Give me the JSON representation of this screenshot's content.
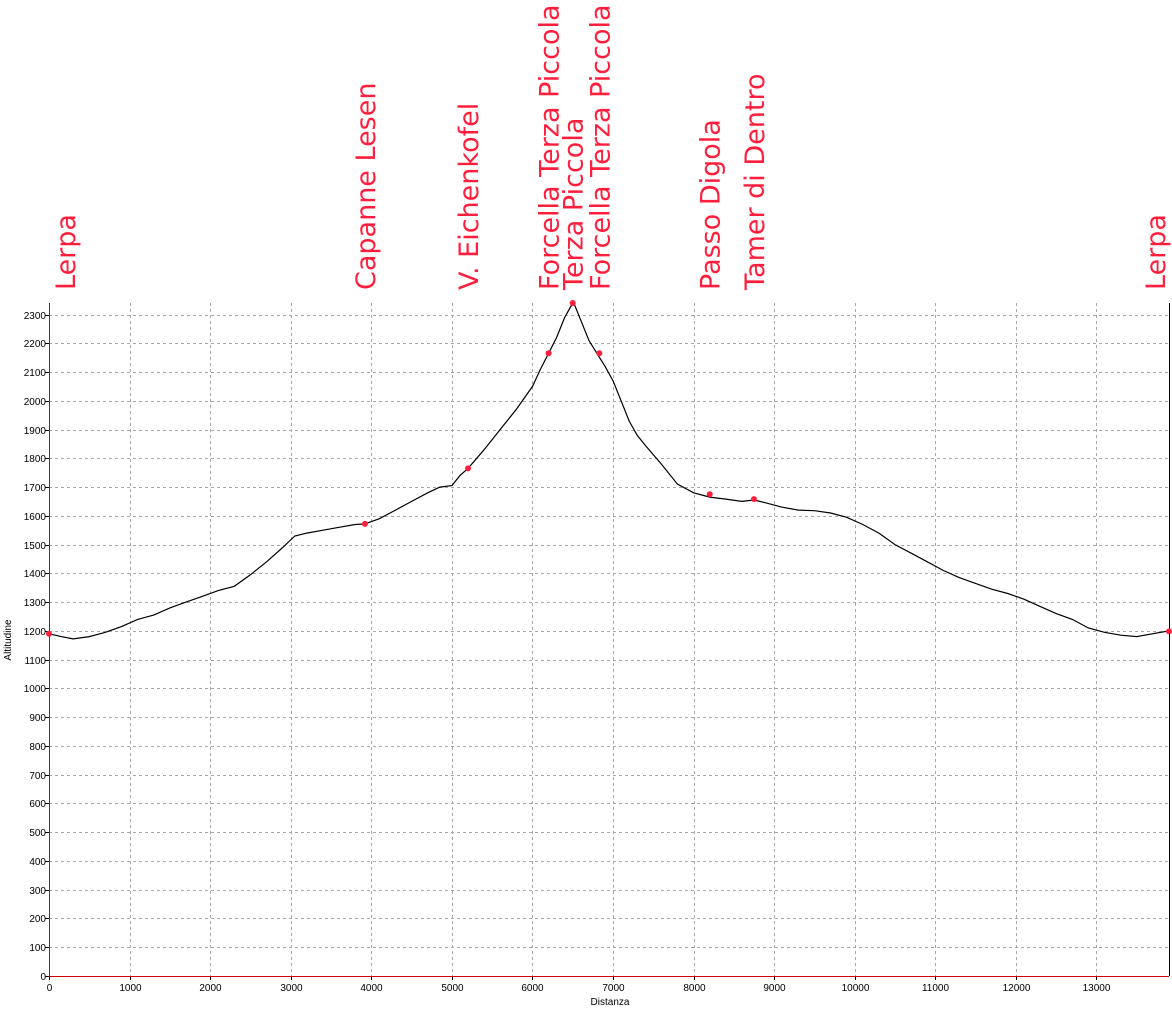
{
  "chart_data": {
    "type": "line",
    "title": "",
    "xlabel": "Distanza",
    "ylabel": "Altitudine",
    "xlim": [
      0,
      13900
    ],
    "ylim": [
      0,
      2340
    ],
    "x_ticks": [
      0,
      1000,
      2000,
      3000,
      4000,
      5000,
      6000,
      7000,
      8000,
      9000,
      10000,
      11000,
      12000,
      13000
    ],
    "y_ticks": [
      0,
      100,
      200,
      300,
      400,
      500,
      600,
      700,
      800,
      900,
      1000,
      1100,
      1200,
      1300,
      1400,
      1500,
      1600,
      1700,
      1800,
      1900,
      2000,
      2100,
      2200,
      2300
    ],
    "grid": true,
    "colors": {
      "profile": "#000000",
      "waypoint": "#ff1e3c",
      "axis": "#cc0000",
      "grid": "#a8a8a8"
    },
    "series": [
      {
        "x": [
          0,
          150,
          300,
          500,
          700,
          900,
          1100,
          1300,
          1500,
          1700,
          1900,
          2100,
          2300,
          2500,
          2700,
          2900,
          3050,
          3200,
          3400,
          3600,
          3800,
          3920,
          4100,
          4300,
          4500,
          4700,
          4850,
          5000,
          5100,
          5200,
          5400,
          5600,
          5800,
          6000,
          6100,
          6200,
          6300,
          6400,
          6480,
          6520,
          6600,
          6700,
          6800,
          6900,
          7000,
          7100,
          7200,
          7300,
          7400,
          7600,
          7800,
          8000,
          8200,
          8400,
          8600,
          8750,
          8900,
          9100,
          9300,
          9500,
          9700,
          9900,
          10100,
          10300,
          10500,
          10700,
          10900,
          11100,
          11300,
          11500,
          11700,
          11900,
          12100,
          12300,
          12500,
          12700,
          12900,
          13100,
          13300,
          13500,
          13700,
          13900
        ],
        "y": [
          1190,
          1180,
          1172,
          1180,
          1195,
          1215,
          1240,
          1255,
          1280,
          1300,
          1320,
          1340,
          1355,
          1395,
          1440,
          1490,
          1530,
          1540,
          1550,
          1560,
          1570,
          1572,
          1590,
          1620,
          1650,
          1680,
          1700,
          1705,
          1740,
          1765,
          1830,
          1900,
          1970,
          2050,
          2110,
          2165,
          2220,
          2290,
          2330,
          2335,
          2280,
          2210,
          2165,
          2120,
          2070,
          2000,
          1930,
          1880,
          1845,
          1780,
          1710,
          1680,
          1665,
          1658,
          1650,
          1655,
          1645,
          1630,
          1620,
          1618,
          1610,
          1595,
          1570,
          1540,
          1500,
          1470,
          1440,
          1410,
          1385,
          1365,
          1345,
          1330,
          1310,
          1285,
          1260,
          1240,
          1210,
          1195,
          1185,
          1180,
          1190,
          1200
        ]
      }
    ],
    "waypoints": [
      {
        "name": "Lerpa",
        "x": 0,
        "y": 1190
      },
      {
        "name": "Capanne Lesen",
        "x": 3920,
        "y": 1572
      },
      {
        "name": "V. Eichenkofel",
        "x": 5200,
        "y": 1765
      },
      {
        "name": "Forcella Terza Piccola",
        "x": 6200,
        "y": 2165
      },
      {
        "name": "Terza Piccola",
        "x": 6500,
        "y": 2340
      },
      {
        "name": "Forcella Terza Piccola",
        "x": 6830,
        "y": 2165
      },
      {
        "name": "Passo Digola",
        "x": 8200,
        "y": 1675
      },
      {
        "name": "Tamer di Dentro",
        "x": 8750,
        "y": 1658
      },
      {
        "name": "Lerpa",
        "x": 13900,
        "y": 1198
      }
    ]
  }
}
